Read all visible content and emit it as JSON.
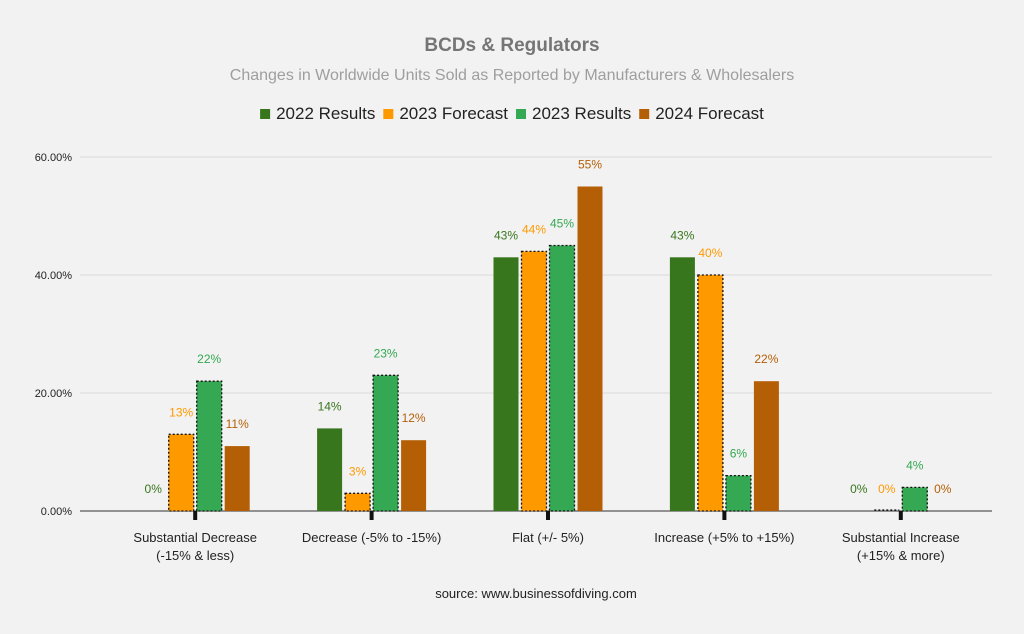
{
  "chart_data": {
    "type": "bar",
    "title": "BCDs & Regulators",
    "subtitle": "Changes in Worldwide Units Sold as Reported by Manufacturers & Wholesalers",
    "categories": [
      [
        "Substantial Decrease",
        "(-15% & less)"
      ],
      [
        "Decrease (-5% to -15%)"
      ],
      [
        "Flat (+/- 5%)"
      ],
      [
        "Increase (+5% to +15%)"
      ],
      [
        "Substantial Increase",
        "(+15% & more)"
      ]
    ],
    "series": [
      {
        "name": "2022 Results",
        "color": "#38761d",
        "dashed": false,
        "values": [
          0,
          14,
          43,
          43,
          0
        ],
        "labels": [
          "0%",
          "14%",
          "43%",
          "43%",
          "0%"
        ],
        "label_color": "#38761d"
      },
      {
        "name": "2023 Forecast",
        "color": "#ff9900",
        "dashed": true,
        "values": [
          13,
          3,
          44,
          40,
          0
        ],
        "labels": [
          "13%",
          "3%",
          "44%",
          "40%",
          "0%"
        ],
        "label_color": "#ff9900"
      },
      {
        "name": "2023 Results",
        "color": "#34a853",
        "dashed": true,
        "values": [
          22,
          23,
          45,
          6,
          4
        ],
        "labels": [
          "22%",
          "23%",
          "45%",
          "6%",
          "4%"
        ],
        "label_color": "#34a853"
      },
      {
        "name": "2024 Forecast",
        "color": "#b45f06",
        "dashed": false,
        "values": [
          11,
          12,
          55,
          22,
          0
        ],
        "labels": [
          "11%",
          "12%",
          "55%",
          "22%",
          "0%"
        ],
        "label_color": "#b45f06"
      }
    ],
    "yticks": [
      "0.00%",
      "20.00%",
      "40.00%",
      "60.00%"
    ],
    "ylim": [
      0,
      60
    ],
    "ylabel": "",
    "xlabel": "",
    "grid": true,
    "legend": "top-center",
    "gridline_color": "#d9d9d9"
  },
  "source_text": "source: www.businessofdiving.com"
}
